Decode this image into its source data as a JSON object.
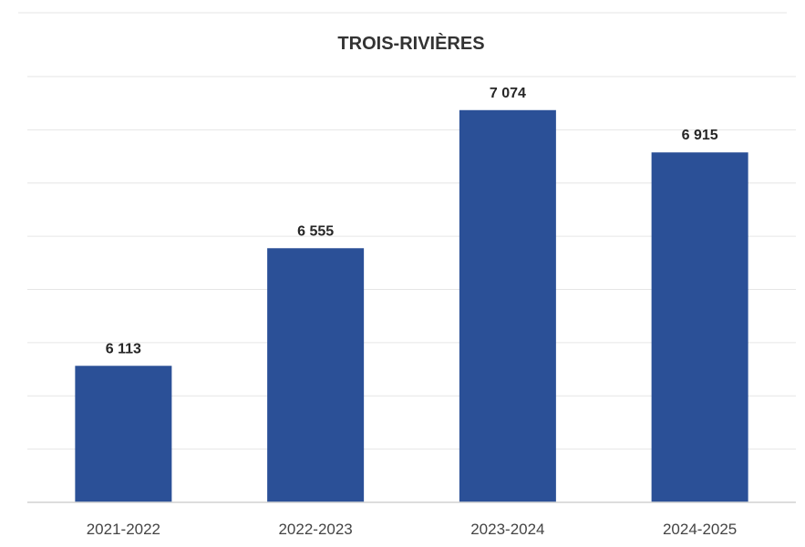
{
  "chart_data": {
    "type": "bar",
    "title": "TROIS-RIVIÈRES",
    "xlabel": "",
    "ylabel": "",
    "categories": [
      "2021-2022",
      "2022-2023",
      "2023-2024",
      "2024-2025"
    ],
    "values": [
      6113,
      6555,
      7074,
      6915
    ],
    "value_labels": [
      "6 113",
      "6 555",
      "7 074",
      "6 915"
    ],
    "ylim": [
      5600,
      7200
    ],
    "grid": true,
    "legend": "none",
    "colors": {
      "bar": "#2b5097",
      "grid": "#e6e6e6",
      "baseline": "#d2d2d2"
    }
  }
}
